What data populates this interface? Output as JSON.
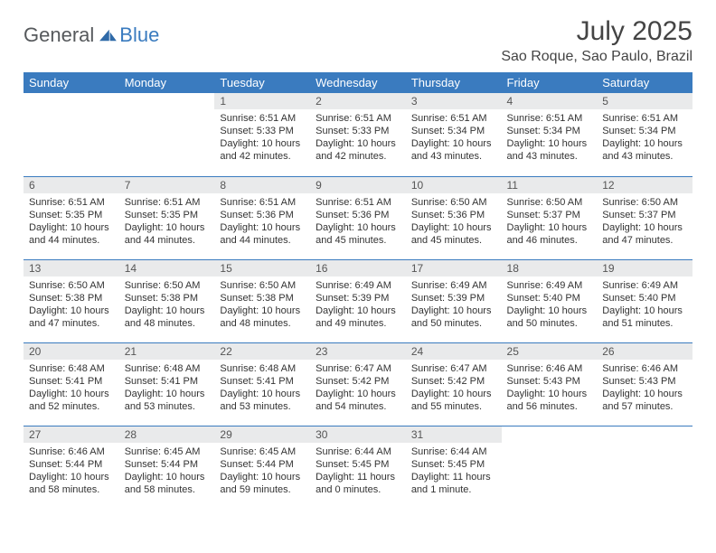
{
  "branding": {
    "part1": "General",
    "part2": "Blue"
  },
  "title": "July 2025",
  "location": "Sao Roque, Sao Paulo, Brazil",
  "colors": {
    "header_bg": "#3a7bbf",
    "header_text": "#ffffff",
    "daynum_bg": "#e9eaeb",
    "text": "#333333",
    "rule": "#3a7bbf",
    "page_bg": "#ffffff"
  },
  "typography": {
    "title_fontsize": 30,
    "location_fontsize": 16,
    "dayhead_fontsize": 13,
    "body_fontsize": 11
  },
  "day_headers": [
    "Sunday",
    "Monday",
    "Tuesday",
    "Wednesday",
    "Thursday",
    "Friday",
    "Saturday"
  ],
  "weeks": [
    [
      {
        "empty": true
      },
      {
        "empty": true
      },
      {
        "n": "1",
        "sr": "Sunrise: 6:51 AM",
        "ss": "Sunset: 5:33 PM",
        "dl": "Daylight: 10 hours and 42 minutes."
      },
      {
        "n": "2",
        "sr": "Sunrise: 6:51 AM",
        "ss": "Sunset: 5:33 PM",
        "dl": "Daylight: 10 hours and 42 minutes."
      },
      {
        "n": "3",
        "sr": "Sunrise: 6:51 AM",
        "ss": "Sunset: 5:34 PM",
        "dl": "Daylight: 10 hours and 43 minutes."
      },
      {
        "n": "4",
        "sr": "Sunrise: 6:51 AM",
        "ss": "Sunset: 5:34 PM",
        "dl": "Daylight: 10 hours and 43 minutes."
      },
      {
        "n": "5",
        "sr": "Sunrise: 6:51 AM",
        "ss": "Sunset: 5:34 PM",
        "dl": "Daylight: 10 hours and 43 minutes."
      }
    ],
    [
      {
        "n": "6",
        "sr": "Sunrise: 6:51 AM",
        "ss": "Sunset: 5:35 PM",
        "dl": "Daylight: 10 hours and 44 minutes."
      },
      {
        "n": "7",
        "sr": "Sunrise: 6:51 AM",
        "ss": "Sunset: 5:35 PM",
        "dl": "Daylight: 10 hours and 44 minutes."
      },
      {
        "n": "8",
        "sr": "Sunrise: 6:51 AM",
        "ss": "Sunset: 5:36 PM",
        "dl": "Daylight: 10 hours and 44 minutes."
      },
      {
        "n": "9",
        "sr": "Sunrise: 6:51 AM",
        "ss": "Sunset: 5:36 PM",
        "dl": "Daylight: 10 hours and 45 minutes."
      },
      {
        "n": "10",
        "sr": "Sunrise: 6:50 AM",
        "ss": "Sunset: 5:36 PM",
        "dl": "Daylight: 10 hours and 45 minutes."
      },
      {
        "n": "11",
        "sr": "Sunrise: 6:50 AM",
        "ss": "Sunset: 5:37 PM",
        "dl": "Daylight: 10 hours and 46 minutes."
      },
      {
        "n": "12",
        "sr": "Sunrise: 6:50 AM",
        "ss": "Sunset: 5:37 PM",
        "dl": "Daylight: 10 hours and 47 minutes."
      }
    ],
    [
      {
        "n": "13",
        "sr": "Sunrise: 6:50 AM",
        "ss": "Sunset: 5:38 PM",
        "dl": "Daylight: 10 hours and 47 minutes."
      },
      {
        "n": "14",
        "sr": "Sunrise: 6:50 AM",
        "ss": "Sunset: 5:38 PM",
        "dl": "Daylight: 10 hours and 48 minutes."
      },
      {
        "n": "15",
        "sr": "Sunrise: 6:50 AM",
        "ss": "Sunset: 5:38 PM",
        "dl": "Daylight: 10 hours and 48 minutes."
      },
      {
        "n": "16",
        "sr": "Sunrise: 6:49 AM",
        "ss": "Sunset: 5:39 PM",
        "dl": "Daylight: 10 hours and 49 minutes."
      },
      {
        "n": "17",
        "sr": "Sunrise: 6:49 AM",
        "ss": "Sunset: 5:39 PM",
        "dl": "Daylight: 10 hours and 50 minutes."
      },
      {
        "n": "18",
        "sr": "Sunrise: 6:49 AM",
        "ss": "Sunset: 5:40 PM",
        "dl": "Daylight: 10 hours and 50 minutes."
      },
      {
        "n": "19",
        "sr": "Sunrise: 6:49 AM",
        "ss": "Sunset: 5:40 PM",
        "dl": "Daylight: 10 hours and 51 minutes."
      }
    ],
    [
      {
        "n": "20",
        "sr": "Sunrise: 6:48 AM",
        "ss": "Sunset: 5:41 PM",
        "dl": "Daylight: 10 hours and 52 minutes."
      },
      {
        "n": "21",
        "sr": "Sunrise: 6:48 AM",
        "ss": "Sunset: 5:41 PM",
        "dl": "Daylight: 10 hours and 53 minutes."
      },
      {
        "n": "22",
        "sr": "Sunrise: 6:48 AM",
        "ss": "Sunset: 5:41 PM",
        "dl": "Daylight: 10 hours and 53 minutes."
      },
      {
        "n": "23",
        "sr": "Sunrise: 6:47 AM",
        "ss": "Sunset: 5:42 PM",
        "dl": "Daylight: 10 hours and 54 minutes."
      },
      {
        "n": "24",
        "sr": "Sunrise: 6:47 AM",
        "ss": "Sunset: 5:42 PM",
        "dl": "Daylight: 10 hours and 55 minutes."
      },
      {
        "n": "25",
        "sr": "Sunrise: 6:46 AM",
        "ss": "Sunset: 5:43 PM",
        "dl": "Daylight: 10 hours and 56 minutes."
      },
      {
        "n": "26",
        "sr": "Sunrise: 6:46 AM",
        "ss": "Sunset: 5:43 PM",
        "dl": "Daylight: 10 hours and 57 minutes."
      }
    ],
    [
      {
        "n": "27",
        "sr": "Sunrise: 6:46 AM",
        "ss": "Sunset: 5:44 PM",
        "dl": "Daylight: 10 hours and 58 minutes."
      },
      {
        "n": "28",
        "sr": "Sunrise: 6:45 AM",
        "ss": "Sunset: 5:44 PM",
        "dl": "Daylight: 10 hours and 58 minutes."
      },
      {
        "n": "29",
        "sr": "Sunrise: 6:45 AM",
        "ss": "Sunset: 5:44 PM",
        "dl": "Daylight: 10 hours and 59 minutes."
      },
      {
        "n": "30",
        "sr": "Sunrise: 6:44 AM",
        "ss": "Sunset: 5:45 PM",
        "dl": "Daylight: 11 hours and 0 minutes."
      },
      {
        "n": "31",
        "sr": "Sunrise: 6:44 AM",
        "ss": "Sunset: 5:45 PM",
        "dl": "Daylight: 11 hours and 1 minute."
      },
      {
        "empty": true
      },
      {
        "empty": true
      }
    ]
  ]
}
